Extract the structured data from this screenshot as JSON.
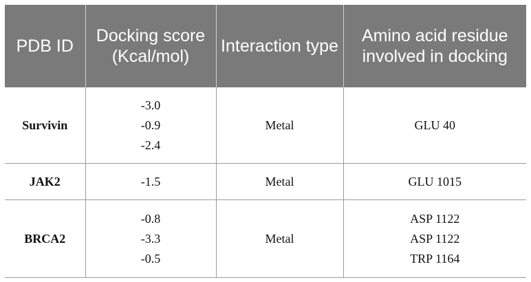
{
  "headers": [
    "PDB ID",
    "Docking score (Kcal/mol)",
    "Interaction type",
    "Amino acid residue involved in docking"
  ],
  "rows": [
    {
      "pdb_id": "Survivin",
      "scores": [
        "-3.0",
        "-0.9",
        "-2.4"
      ],
      "interaction": "Metal",
      "residues": [
        "GLU 40"
      ]
    },
    {
      "pdb_id": "JAK2",
      "scores": [
        "-1.5"
      ],
      "interaction": "Metal",
      "residues": [
        "GLU 1015"
      ]
    },
    {
      "pdb_id": "BRCA2",
      "scores": [
        "-0.8",
        "-3.3",
        "-0.5"
      ],
      "interaction": "Metal",
      "residues": [
        "ASP 1122",
        "ASP 1122",
        "TRP 1164"
      ]
    }
  ],
  "colors": {
    "header_bg": "#7a7a7a",
    "header_text": "#ffffff",
    "grid": "#9a9a9a"
  }
}
